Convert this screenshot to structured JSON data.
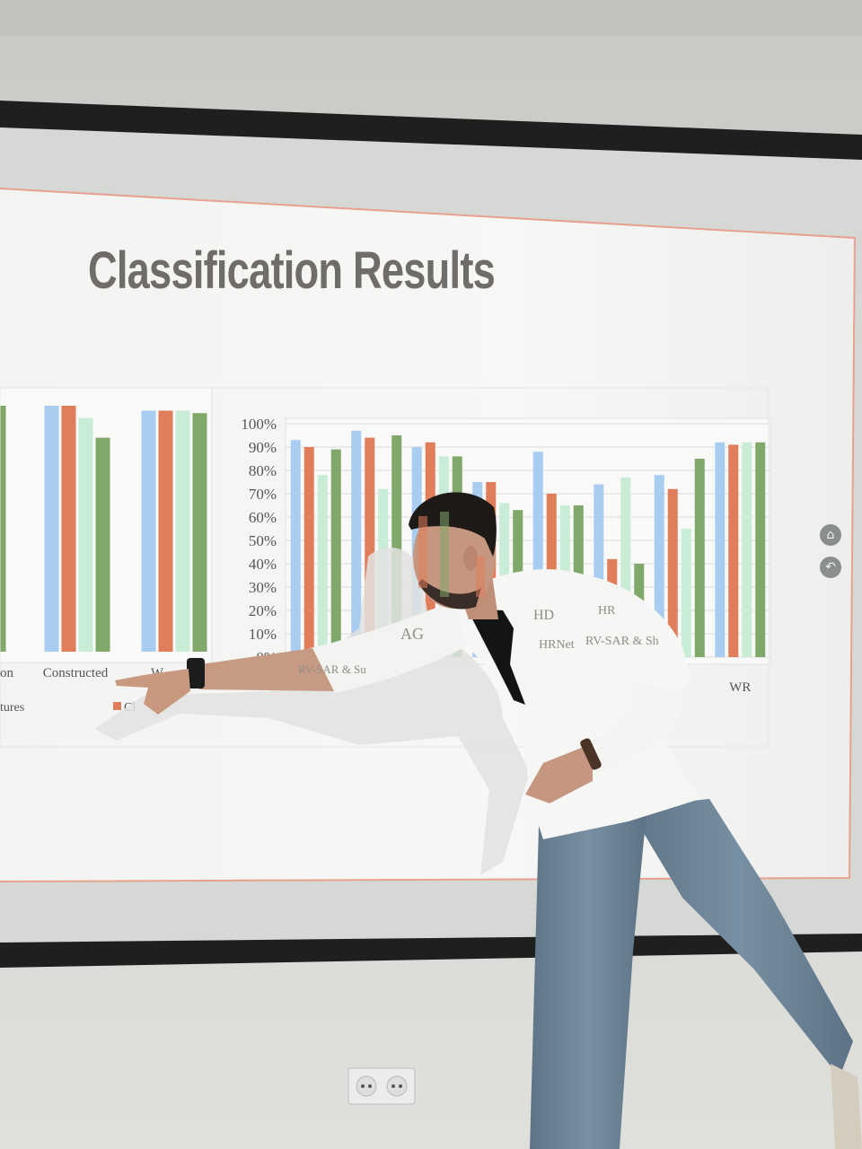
{
  "slide": {
    "title": "Classification Results",
    "nav": {
      "home_icon": "house",
      "back_icon": "return-arrow"
    }
  },
  "colors": {
    "blue": "#a8cdf0",
    "orange": "#e07e5c",
    "mint": "#c9ecd6",
    "green": "#7fa86a",
    "gridline": "#dcdcdc",
    "axis_text": "#555555"
  },
  "chart_data": [
    {
      "type": "bar",
      "partially_visible": true,
      "categories": [
        "on",
        "Constructed",
        "W"
      ],
      "series": [
        {
          "color": "blue",
          "values": [
            null,
            100,
            98
          ]
        },
        {
          "color": "orange",
          "values": [
            null,
            100,
            98
          ]
        },
        {
          "color": "mint",
          "values": [
            null,
            95,
            98
          ]
        },
        {
          "color": "green",
          "values": [
            100,
            87,
            97
          ]
        }
      ],
      "legend_fragments": [
        "tures",
        "Cl"
      ]
    },
    {
      "type": "bar",
      "partially_visible": true,
      "y_ticks": [
        "100%",
        "90%",
        "80%",
        "70%",
        "60%",
        "50%",
        "40%",
        "30%",
        "20%",
        "10%",
        "0%"
      ],
      "ylim": [
        0,
        100
      ],
      "grid": true,
      "categories": [
        "AG",
        "HD",
        "HR",
        "RV-SAR & Sh",
        "",
        "",
        "",
        "WR"
      ],
      "visible_category_labels": [
        "RV",
        "SAR & Su",
        "AG",
        "HD",
        "HR",
        "HRNet",
        "RV-SAR & Sh",
        "WR"
      ],
      "series": [
        {
          "color": "blue",
          "values": [
            93,
            97,
            90,
            75,
            88,
            74,
            78,
            92
          ]
        },
        {
          "color": "orange",
          "values": [
            90,
            94,
            92,
            75,
            70,
            42,
            72,
            91
          ]
        },
        {
          "color": "mint",
          "values": [
            78,
            72,
            86,
            66,
            65,
            77,
            55,
            92
          ]
        },
        {
          "color": "green",
          "values": [
            89,
            95,
            86,
            63,
            65,
            40,
            85,
            92
          ]
        }
      ]
    }
  ]
}
